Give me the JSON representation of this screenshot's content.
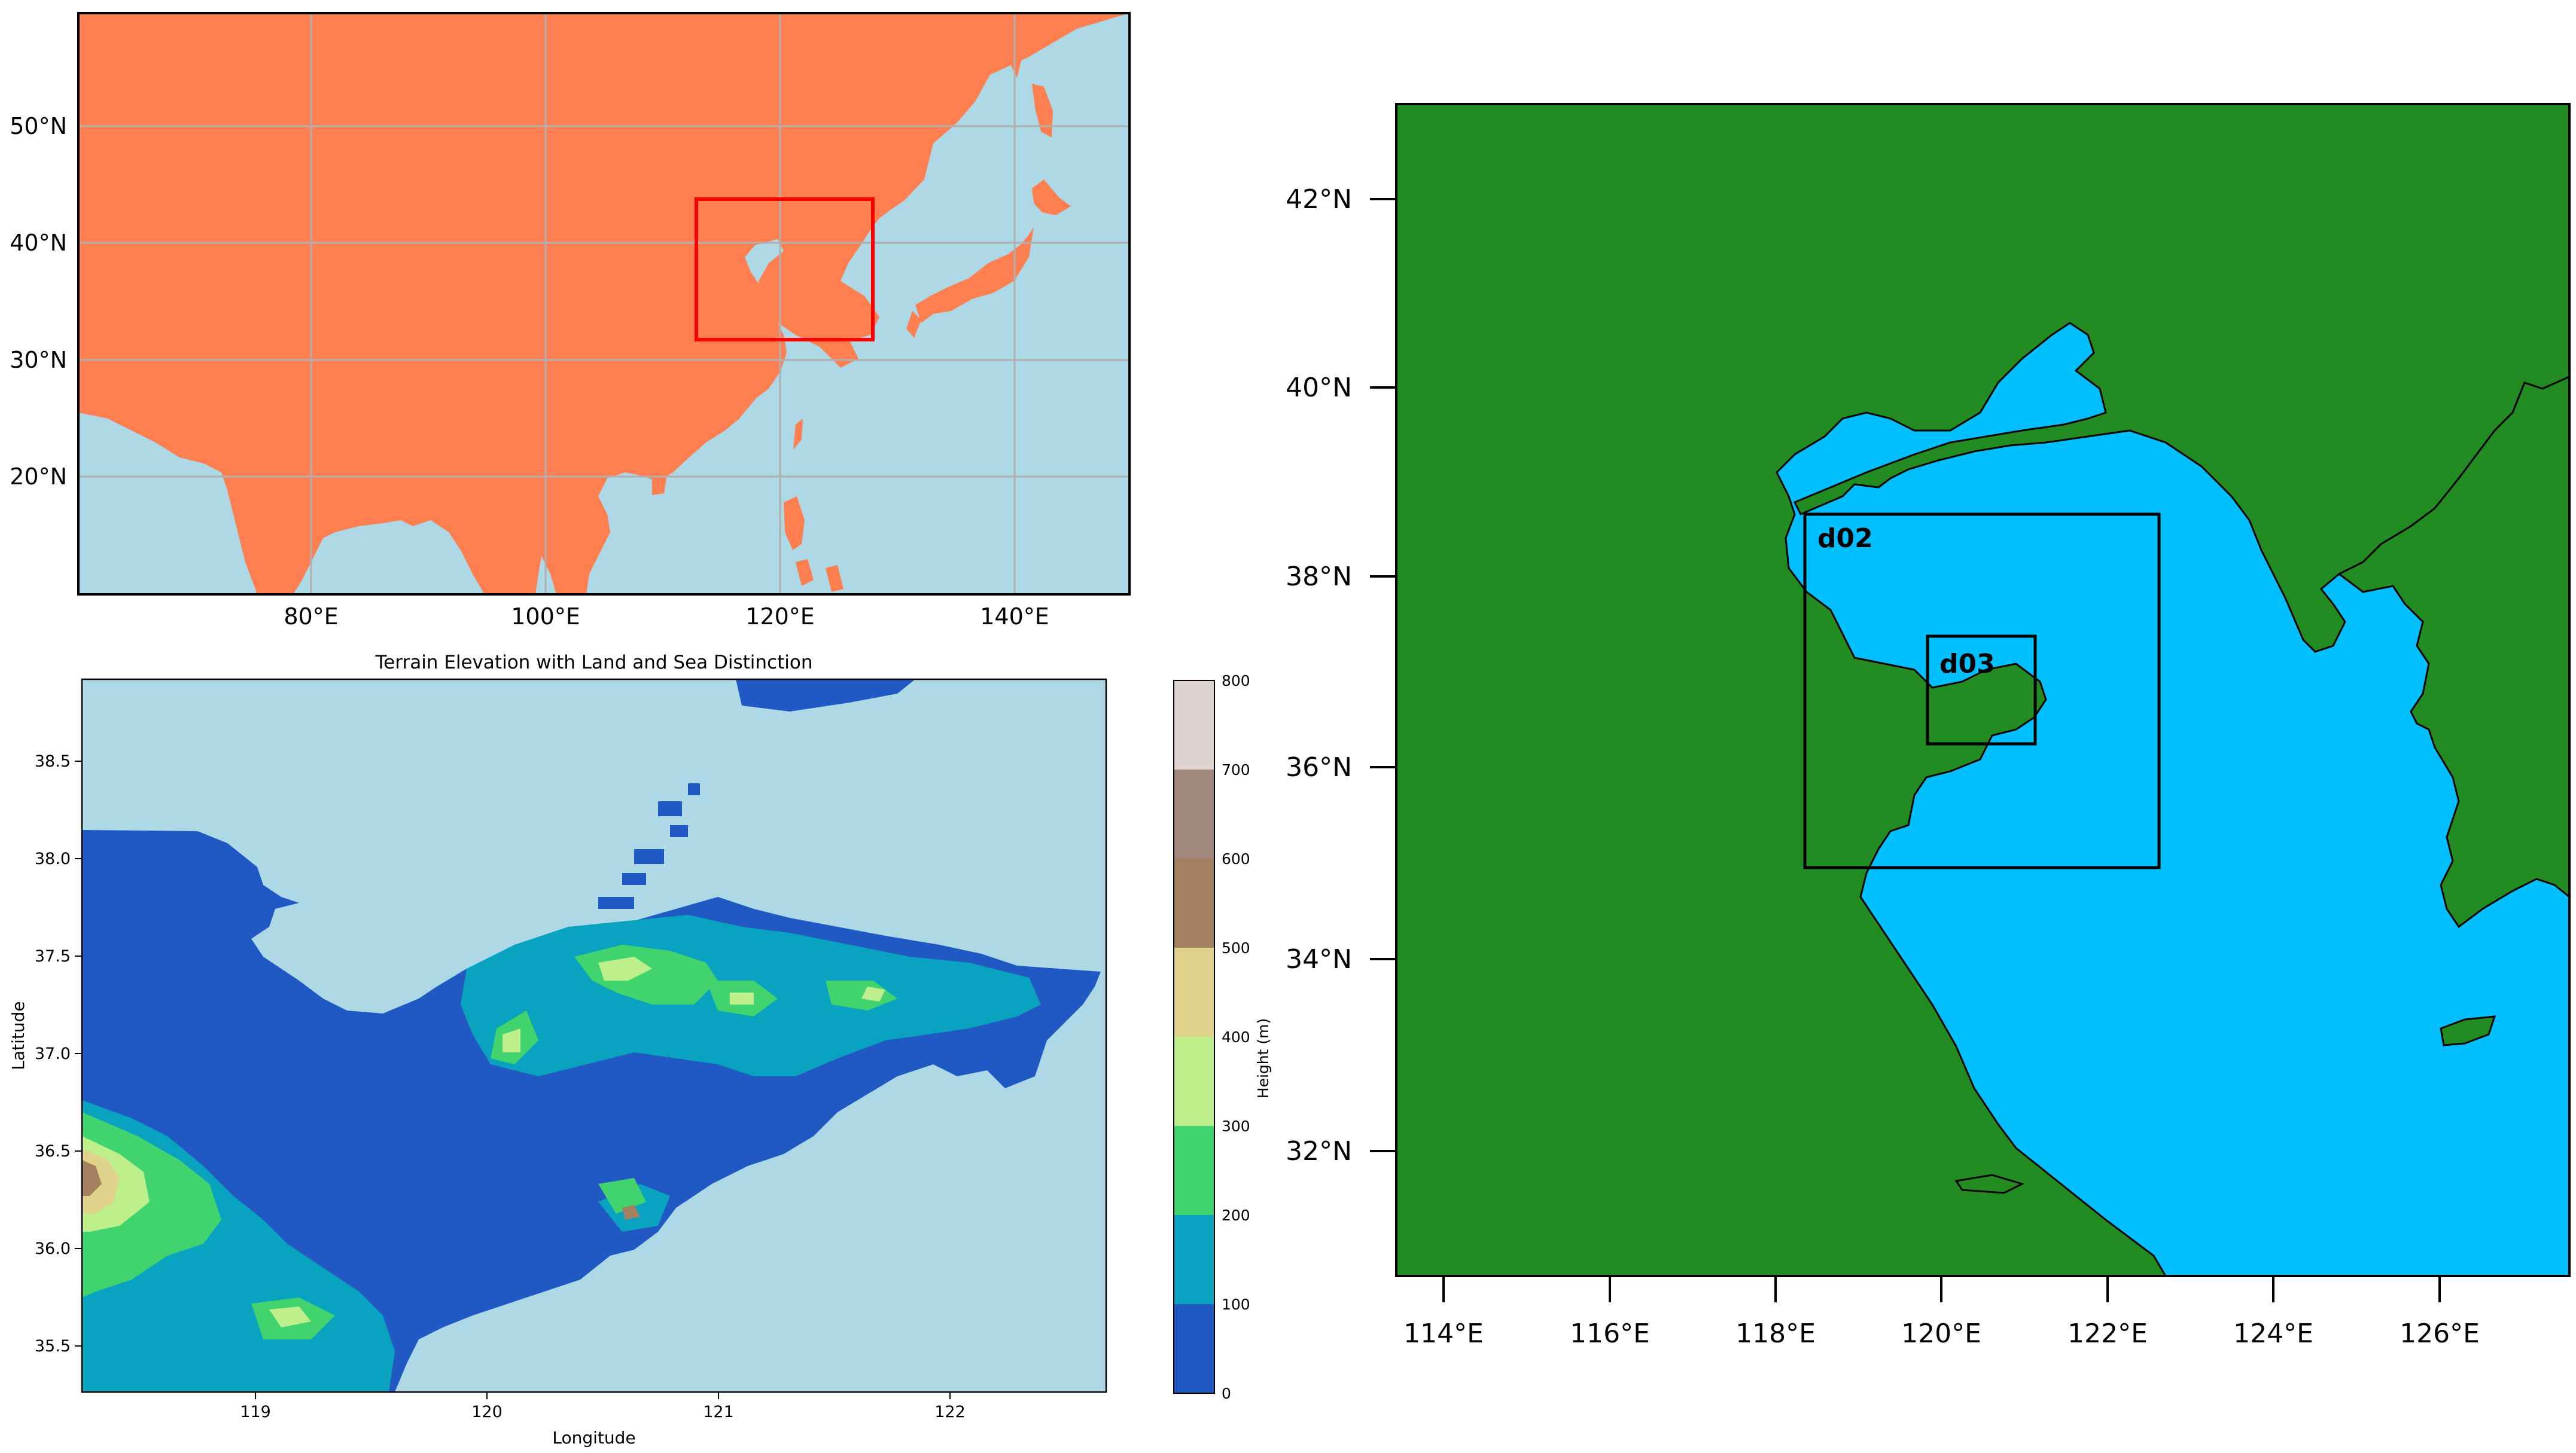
{
  "top_left_map": {
    "lat_ticks": [
      "50°N",
      "40°N",
      "30°N",
      "20°N"
    ],
    "lon_ticks": [
      "80°E",
      "100°E",
      "120°E",
      "140°E"
    ],
    "land_color": "#FF7F50",
    "sea_color": "#ADD8E6",
    "box_color": "#FF0000"
  },
  "terrain_map": {
    "title": "Terrain Elevation with Land and Sea Distinction",
    "xlabel": "Longitude",
    "ylabel": "Latitude",
    "x_ticks": [
      "119",
      "120",
      "121",
      "122"
    ],
    "y_ticks": [
      "38.5",
      "38.0",
      "37.5",
      "37.0",
      "36.5",
      "36.0",
      "35.5"
    ],
    "colorbar_label": "Height (m)",
    "colorbar_ticks": [
      "800",
      "700",
      "600",
      "500",
      "400",
      "300",
      "200",
      "100",
      "0"
    ],
    "colorbar_colors": [
      "#2159c4",
      "#0aa3bf",
      "#41d46e",
      "#bdf08a",
      "#dfd28a",
      "#a3805e",
      "#a1877c",
      "#ddd4d2"
    ],
    "sea_color": "#ADD8E6"
  },
  "domain_map": {
    "lat_ticks": [
      "42°N",
      "40°N",
      "38°N",
      "36°N",
      "34°N",
      "32°N"
    ],
    "lon_ticks": [
      "114°E",
      "116°E",
      "118°E",
      "120°E",
      "122°E",
      "124°E",
      "126°E"
    ],
    "domain_labels": [
      "d02",
      "d03"
    ],
    "land_color": "#228B22",
    "sea_color": "#00BFFF"
  }
}
